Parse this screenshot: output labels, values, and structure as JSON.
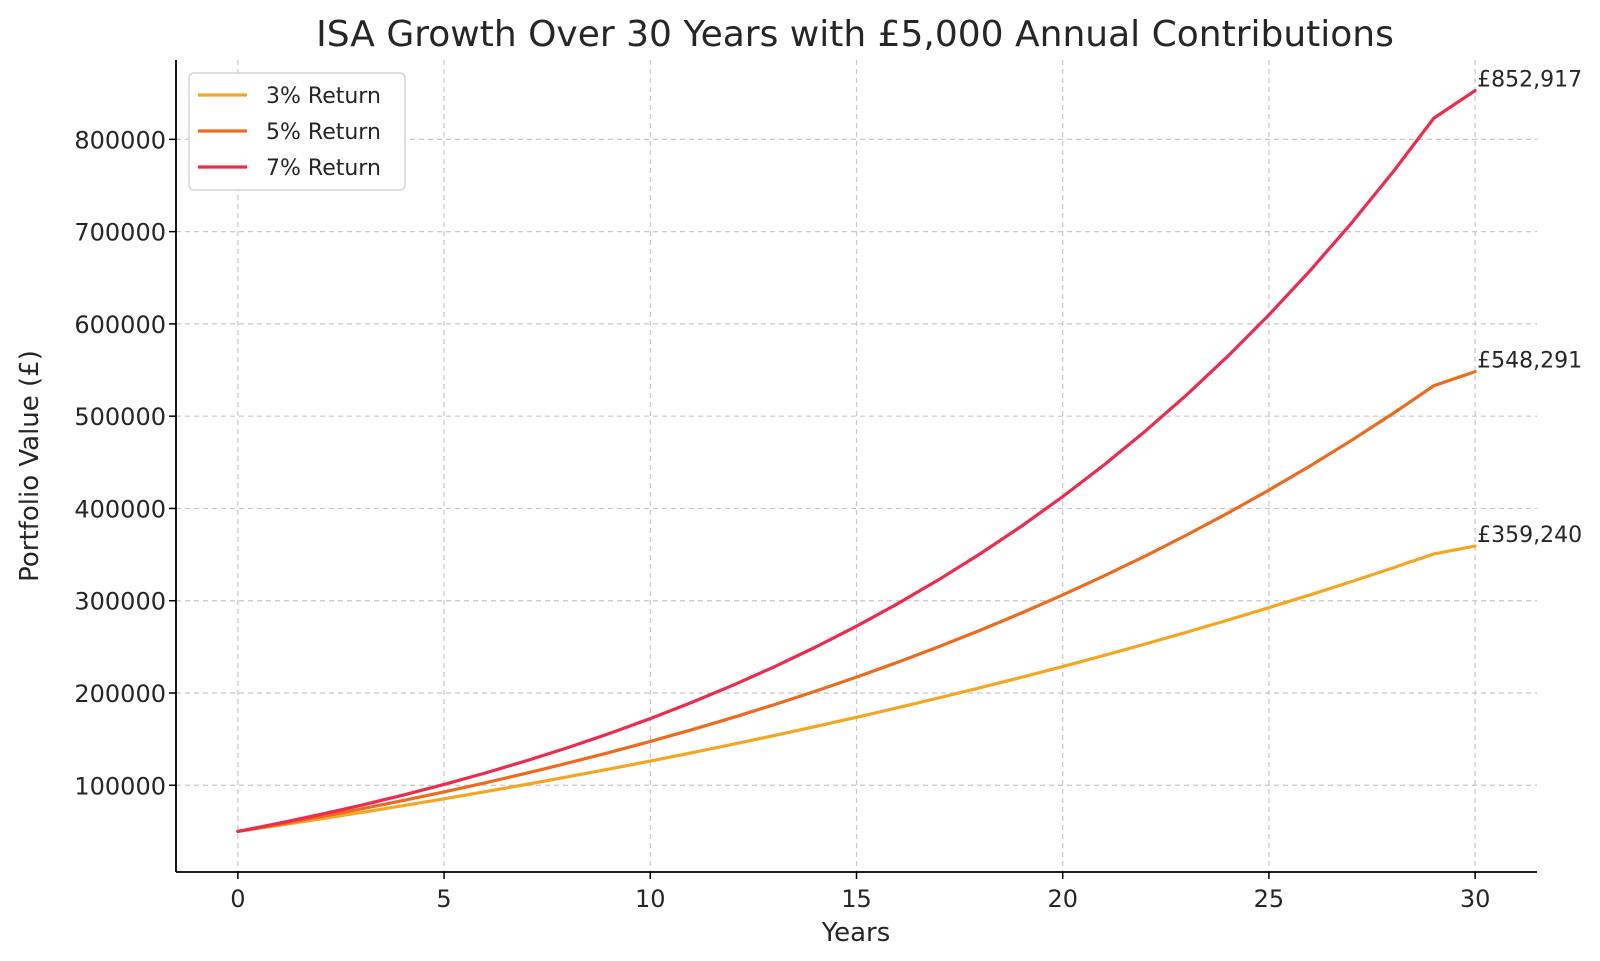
{
  "chart_data": {
    "type": "line",
    "title": "ISA Growth Over 30 Years with £5,000 Annual Contributions",
    "xlabel": "Years",
    "ylabel": "Portfolio Value (£)",
    "xlim": [
      -1.5,
      31.5
    ],
    "ylim": [
      6000,
      886000
    ],
    "xticks": [
      0,
      5,
      10,
      15,
      20,
      25,
      30
    ],
    "yticks": [
      100000,
      200000,
      300000,
      400000,
      500000,
      600000,
      700000,
      800000
    ],
    "grid": true,
    "legend_position": "top-left",
    "x": [
      0,
      1,
      2,
      3,
      4,
      5,
      6,
      7,
      8,
      9,
      10,
      11,
      12,
      13,
      14,
      15,
      16,
      17,
      18,
      19,
      20,
      21,
      22,
      23,
      24,
      25,
      26,
      27,
      28,
      29,
      30
    ],
    "series": [
      {
        "name": "3% Return",
        "color": "#f5a623",
        "values": [
          50000,
          56650,
          63500,
          70555,
          77821,
          85306,
          93015,
          100955,
          109134,
          117558,
          126235,
          135172,
          144377,
          153859,
          163624,
          173683,
          184043,
          194714,
          205706,
          217027,
          228688,
          240698,
          253069,
          265811,
          278936,
          292454,
          306377,
          320719,
          335490,
          350705,
          359240
        ]
      },
      {
        "name": "5% Return",
        "color": "#ee6a1f",
        "values": [
          50000,
          57750,
          65888,
          74432,
          83403,
          92824,
          102715,
          113101,
          124006,
          135456,
          147479,
          160103,
          173358,
          187276,
          201890,
          217234,
          233346,
          250263,
          268026,
          286678,
          306262,
          326825,
          348416,
          371087,
          394891,
          419886,
          446130,
          473686,
          502621,
          533002,
          548291
        ]
      },
      {
        "name": "7% Return",
        "color": "#ee2a4d",
        "values": [
          50000,
          58850,
          68320,
          78452,
          89294,
          100894,
          113307,
          126589,
          140800,
          156006,
          172277,
          189686,
          208314,
          228246,
          249573,
          272393,
          296810,
          322937,
          350892,
          380805,
          412811,
          447058,
          483702,
          522911,
          564865,
          609755,
          657788,
          709183,
          764176,
          823019,
          852917
        ]
      }
    ],
    "annotations": [
      {
        "text": "£852,917",
        "series": "7% Return",
        "x": 30,
        "y": 852917
      },
      {
        "text": "£548,291",
        "series": "5% Return",
        "x": 30,
        "y": 548291
      },
      {
        "text": "£359,240",
        "series": "3% Return",
        "x": 30,
        "y": 359240
      }
    ]
  }
}
